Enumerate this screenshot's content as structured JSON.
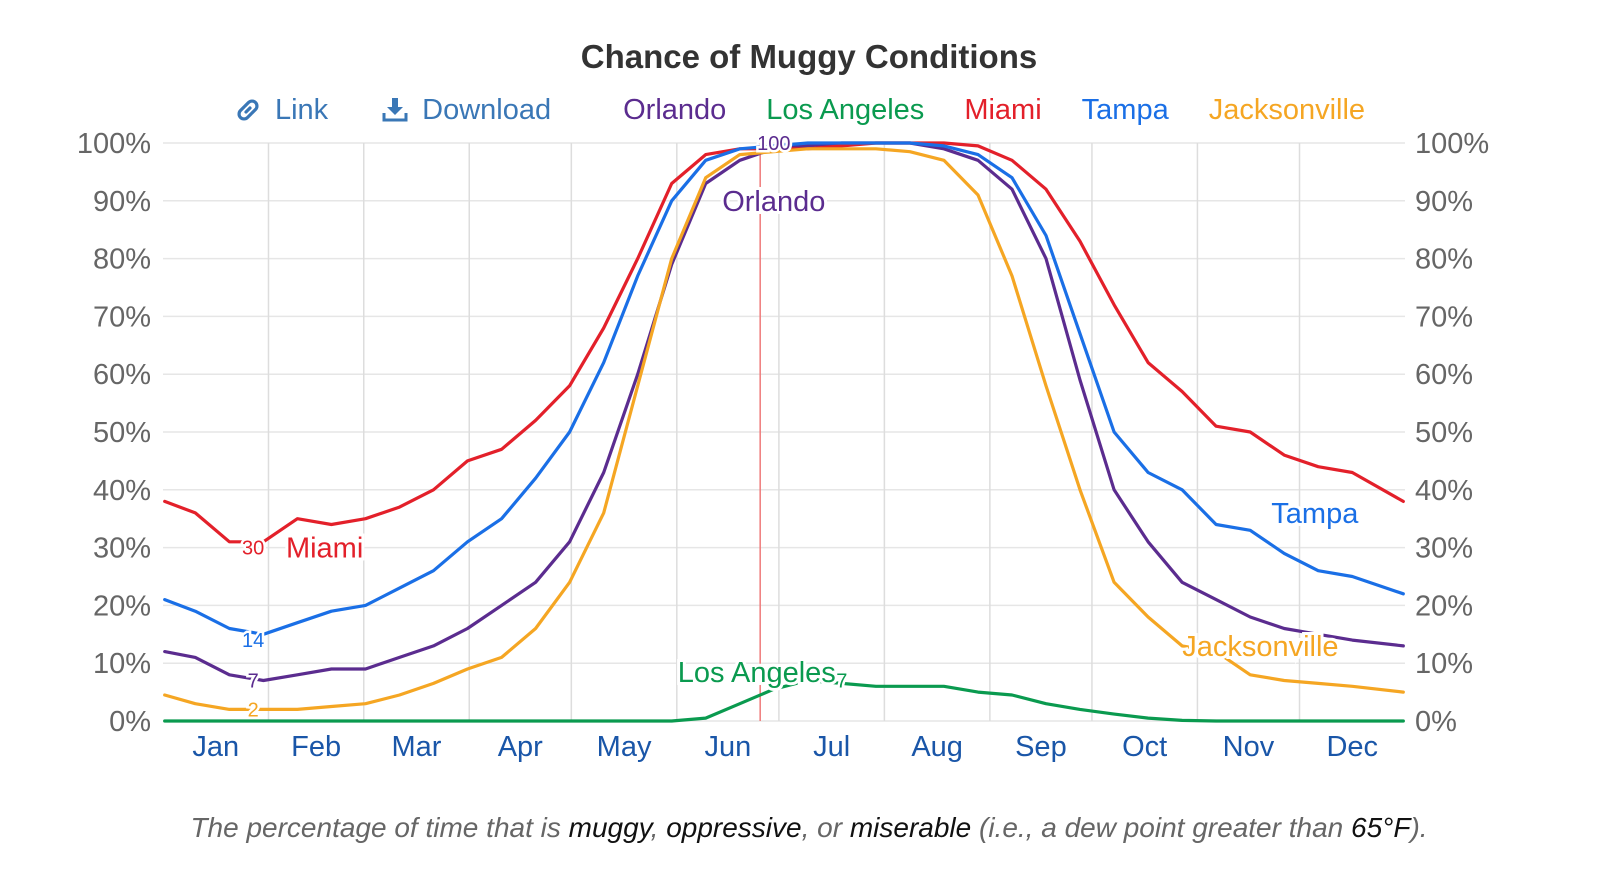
{
  "title": "Chance of Muggy Conditions",
  "toolbar": {
    "link_label": "Link",
    "link_icon": "link-icon",
    "download_label": "Download",
    "download_icon": "download-icon"
  },
  "caption": {
    "prefix": "The percentage of time that is ",
    "w1": "muggy",
    "sep1": ", ",
    "w2": "oppressive",
    "sep2": ", or ",
    "w3": "miserable",
    "mid": " (i.e., a dew point greater than ",
    "threshold": "65°F",
    "suffix": ")."
  },
  "chart_data": {
    "type": "line",
    "title": "Chance of Muggy Conditions",
    "ylim": [
      0,
      100
    ],
    "yticks": [
      "0%",
      "10%",
      "20%",
      "30%",
      "40%",
      "50%",
      "60%",
      "70%",
      "80%",
      "90%",
      "100%"
    ],
    "months": [
      "Jan",
      "Feb",
      "Mar",
      "Apr",
      "May",
      "Jun",
      "Jul",
      "Aug",
      "Sep",
      "Oct",
      "Nov",
      "Dec"
    ],
    "grid": true,
    "legend_position": "top",
    "highlight_day": 176,
    "x_unit": "day of year",
    "series": [
      {
        "name": "Orlando",
        "color": "#5b2c8f",
        "x": [
          1,
          10,
          20,
          30,
          40,
          50,
          60,
          70,
          80,
          90,
          100,
          110,
          120,
          130,
          140,
          150,
          160,
          170,
          180,
          190,
          200,
          210,
          220,
          230,
          240,
          250,
          260,
          270,
          280,
          290,
          300,
          310,
          320,
          330,
          340,
          350,
          365
        ],
        "values": [
          12,
          11,
          8,
          7,
          8,
          9,
          9,
          11,
          13,
          16,
          20,
          24,
          31,
          43,
          60,
          79,
          93,
          97,
          99,
          99.5,
          100,
          100,
          100,
          99,
          97,
          92,
          80,
          59,
          40,
          31,
          24,
          21,
          18,
          16,
          15,
          14,
          13
        ],
        "labels": [
          {
            "x": 27,
            "y": 7,
            "text": "7"
          },
          {
            "x": 180,
            "y": 100,
            "text": "100"
          }
        ],
        "name_label": {
          "x": 180,
          "y": 90
        }
      },
      {
        "name": "Los Angeles",
        "color": "#0a9a4f",
        "x": [
          1,
          100,
          150,
          160,
          170,
          180,
          190,
          200,
          210,
          220,
          230,
          240,
          250,
          260,
          270,
          280,
          290,
          300,
          310,
          320,
          330,
          340,
          350,
          365
        ],
        "values": [
          0,
          0,
          0,
          0.5,
          3,
          5.5,
          7,
          6.5,
          6,
          6,
          6,
          5,
          4.5,
          3,
          2,
          1.2,
          0.5,
          0.1,
          0,
          0,
          0,
          0,
          0,
          0
        ],
        "labels": [
          {
            "x": 200,
            "y": 7,
            "text": "7"
          }
        ],
        "name_label": {
          "x": 175,
          "y": 8.5
        }
      },
      {
        "name": "Miami",
        "color": "#e3202a",
        "x": [
          1,
          10,
          20,
          30,
          40,
          50,
          60,
          70,
          80,
          90,
          100,
          110,
          120,
          130,
          140,
          150,
          160,
          170,
          180,
          190,
          200,
          210,
          220,
          230,
          240,
          250,
          260,
          270,
          280,
          290,
          300,
          310,
          320,
          330,
          340,
          350,
          365
        ],
        "values": [
          38,
          36,
          31,
          31,
          35,
          34,
          35,
          37,
          40,
          45,
          47,
          52,
          58,
          68,
          80,
          93,
          98,
          99,
          99,
          99,
          99.5,
          100,
          100,
          100,
          99.5,
          97,
          92,
          83,
          72,
          62,
          57,
          51,
          50,
          46,
          44,
          43,
          38
        ],
        "labels": [
          {
            "x": 27,
            "y": 30,
            "text": "30"
          }
        ],
        "name_label": {
          "x": 48,
          "y": 30
        }
      },
      {
        "name": "Tampa",
        "color": "#1a6fe6",
        "x": [
          1,
          10,
          20,
          30,
          40,
          50,
          60,
          70,
          80,
          90,
          100,
          110,
          120,
          130,
          140,
          150,
          160,
          170,
          180,
          190,
          200,
          210,
          220,
          230,
          240,
          250,
          260,
          270,
          280,
          290,
          300,
          310,
          320,
          330,
          340,
          350,
          365
        ],
        "values": [
          21,
          19,
          16,
          15,
          17,
          19,
          20,
          23,
          26,
          31,
          35,
          42,
          50,
          62,
          77,
          90,
          97,
          99,
          99.5,
          100,
          100,
          100,
          100,
          99.5,
          98,
          94,
          84,
          67,
          50,
          43,
          40,
          34,
          33,
          29,
          26,
          25,
          22
        ],
        "labels": [
          {
            "x": 27,
            "y": 14,
            "text": "14"
          }
        ],
        "name_label": {
          "x": 339,
          "y": 36
        }
      },
      {
        "name": "Jacksonville",
        "color": "#f5a623",
        "x": [
          1,
          10,
          20,
          30,
          40,
          50,
          60,
          70,
          80,
          90,
          100,
          110,
          120,
          130,
          140,
          150,
          160,
          170,
          180,
          190,
          200,
          210,
          220,
          230,
          240,
          250,
          260,
          270,
          280,
          290,
          300,
          310,
          320,
          330,
          340,
          350,
          365
        ],
        "values": [
          4.5,
          3,
          2,
          2,
          2,
          2.5,
          3,
          4.5,
          6.5,
          9,
          11,
          16,
          24,
          36,
          58,
          80,
          94,
          98,
          98.5,
          99,
          99,
          99,
          98.5,
          97,
          91,
          77,
          58,
          40,
          24,
          18,
          13,
          12,
          8,
          7,
          6.5,
          6,
          5
        ],
        "labels": [
          {
            "x": 27,
            "y": 2,
            "text": "2"
          }
        ],
        "name_label": {
          "x": 323,
          "y": 13
        }
      }
    ]
  }
}
